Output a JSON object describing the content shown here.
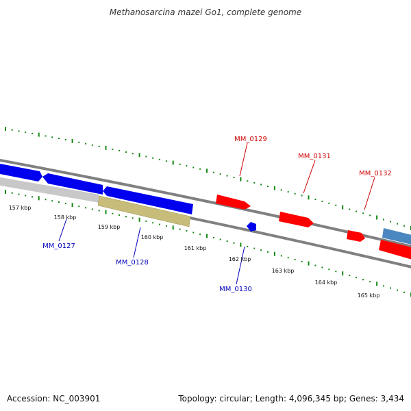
{
  "title": "Methanosarcina mazei Go1, complete genome",
  "footer": {
    "accession": "Accession: NC_003901",
    "topology": "Topology: circular; Length: 4,096,345 bp; Genes: 3,434"
  },
  "colors": {
    "backbone": "#808080",
    "tick": "#118811",
    "forward_gene": "#ff0000",
    "reverse_gene": "#0000ee",
    "label_forward": "#cc0000",
    "label_reverse": "#0000bb",
    "gray_feature": "#c8c8c8",
    "olive_feature": "#c8bc7a",
    "steel_feature": "#4a86c0"
  },
  "scale_labels": [
    "157 kbp",
    "158 kbp",
    "159 kbp",
    "160 kbp",
    "161 kbp",
    "162 kbp",
    "163 kbp",
    "164 kbp",
    "165 kbp"
  ],
  "gene_labels": [
    {
      "id": "MM_0127",
      "strand": "reverse"
    },
    {
      "id": "MM_0128",
      "strand": "reverse"
    },
    {
      "id": "MM_0129",
      "strand": "forward"
    },
    {
      "id": "MM_0130",
      "strand": "reverse"
    },
    {
      "id": "MM_0131",
      "strand": "forward"
    },
    {
      "id": "MM_0132",
      "strand": "forward"
    }
  ]
}
